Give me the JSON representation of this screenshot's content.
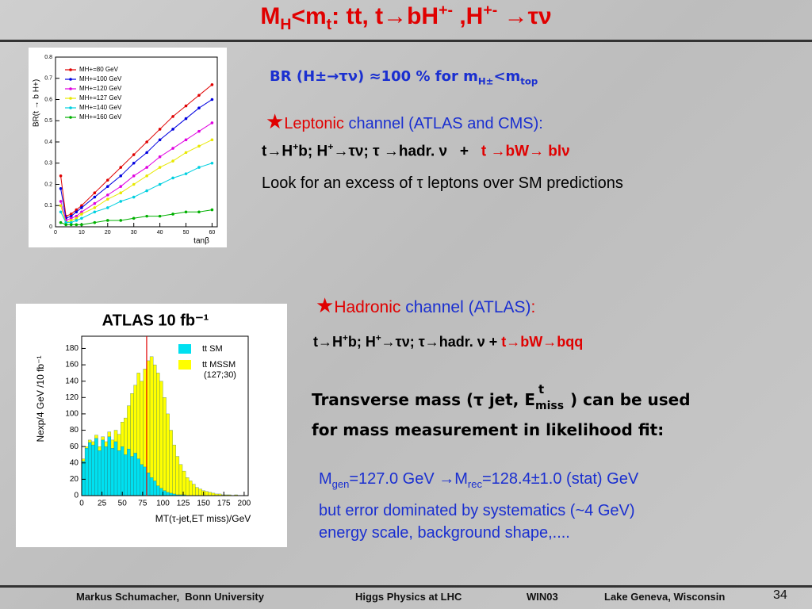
{
  "title": {
    "a": "M",
    "b": "H",
    "c": "<m",
    "d": "t",
    "e": ": tt, t→bH",
    "f": "+-",
    "g": " ,H",
    "h": "+-",
    "i": " →τν"
  },
  "br_line": {
    "a": "BR (H±→τν) ≈100 % for m",
    "b": "H±",
    "c": "<m",
    "d": "top"
  },
  "leptonic": {
    "star": "★",
    "a": "Leptonic",
    "b": " channel (ATLAS and CMS):"
  },
  "leptonic_decay": {
    "a": "t→H",
    "b": "+",
    "c": "b; H",
    "d": "+",
    "e": "→τν; τ →hadr. ν   +   ",
    "f": "t →bW→ blν"
  },
  "excess": "Look for an excess of τ leptons over SM predictions",
  "hadronic": {
    "star": "★",
    "a": "Hadronic",
    "b": " channel (ATLAS)",
    "c": ":"
  },
  "hadronic_decay": {
    "a": "t→H",
    "b": "+",
    "c": "b; H",
    "d": "+",
    "e": "→τν; τ→hadr. ν + ",
    "f": "t→bW→bqq"
  },
  "transverse": {
    "a": "Transverse mass (τ jet, E",
    "b": "t",
    "c": "miss",
    "d": ") can be used",
    "e": "for mass measurement in likelihood fit:"
  },
  "result": {
    "a": "M",
    "b": "gen",
    "c": "=127.0 GeV →M",
    "d": "rec",
    "e": "=128.4±1.0 (stat) GeV"
  },
  "systematics": [
    "but error dominated by systematics (~4 GeV)",
    "energy scale, background shape,...."
  ],
  "footer": {
    "author": "Markus Schumacher,  Bonn University",
    "event": "Higgs Physics at LHC",
    "conf": "WIN03",
    "place": "Lake Geneva, Wisconsin",
    "page": "34"
  },
  "chart_data": [
    {
      "type": "line",
      "y_label": "BR(t → b H+)",
      "x_label": "tanβ",
      "x": [
        2,
        4,
        6,
        8,
        10,
        15,
        20,
        25,
        30,
        35,
        40,
        45,
        50,
        55,
        60
      ],
      "series": [
        {
          "name": "MH+=80 GeV",
          "color": "#e00000",
          "values": [
            0.24,
            0.05,
            0.06,
            0.08,
            0.1,
            0.16,
            0.22,
            0.28,
            0.34,
            0.4,
            0.46,
            0.52,
            0.57,
            0.62,
            0.67
          ]
        },
        {
          "name": "MH+=100 GeV",
          "color": "#0000e0",
          "values": [
            0.18,
            0.04,
            0.05,
            0.07,
            0.09,
            0.14,
            0.19,
            0.24,
            0.3,
            0.35,
            0.41,
            0.46,
            0.51,
            0.56,
            0.6
          ]
        },
        {
          "name": "MH+=120 GeV",
          "color": "#e000e0",
          "values": [
            0.12,
            0.03,
            0.04,
            0.05,
            0.07,
            0.11,
            0.15,
            0.19,
            0.24,
            0.28,
            0.33,
            0.37,
            0.41,
            0.45,
            0.49
          ]
        },
        {
          "name": "MH+=127 GeV",
          "color": "#e8e800",
          "values": [
            0.1,
            0.02,
            0.03,
            0.04,
            0.06,
            0.09,
            0.13,
            0.16,
            0.2,
            0.24,
            0.28,
            0.31,
            0.35,
            0.38,
            0.41
          ]
        },
        {
          "name": "MH+=140 GeV",
          "color": "#00d0e0",
          "values": [
            0.07,
            0.02,
            0.02,
            0.03,
            0.04,
            0.07,
            0.09,
            0.12,
            0.14,
            0.17,
            0.2,
            0.23,
            0.25,
            0.28,
            0.3
          ]
        },
        {
          "name": "MH+=160 GeV",
          "color": "#00b000",
          "values": [
            0.02,
            0.01,
            0.01,
            0.01,
            0.01,
            0.02,
            0.03,
            0.03,
            0.04,
            0.05,
            0.05,
            0.06,
            0.07,
            0.07,
            0.08
          ]
        }
      ],
      "xlim": [
        0,
        62
      ],
      "xticks": [
        0,
        10,
        20,
        30,
        40,
        50,
        60
      ],
      "ylim": [
        0,
        0.8
      ],
      "yticks": [
        0,
        0.1,
        0.2,
        0.3,
        0.4,
        0.5,
        0.6,
        0.7,
        0.8
      ],
      "legend": "upper left"
    },
    {
      "type": "histogram",
      "title": "ATLAS 10 fb⁻¹",
      "y_label": "Nexp/4 GeV /10 fb⁻¹",
      "x_label": "MT(τ-jet,ET miss)/GeV",
      "bins": [
        0,
        4,
        8,
        12,
        16,
        20,
        24,
        28,
        32,
        36,
        40,
        44,
        48,
        52,
        56,
        60,
        64,
        68,
        72,
        76,
        80,
        84,
        88,
        92,
        96,
        100,
        104,
        108,
        112,
        116,
        120,
        124,
        128,
        132,
        136,
        140,
        144,
        148,
        152,
        156,
        160,
        164,
        168,
        172,
        176,
        180,
        184,
        188,
        192,
        196,
        200
      ],
      "series": [
        {
          "name": "tt MSSM",
          "color": "#ffff00",
          "values": [
            45,
            60,
            68,
            66,
            74,
            60,
            72,
            66,
            78,
            68,
            80,
            75,
            90,
            95,
            110,
            125,
            135,
            150,
            140,
            155,
            165,
            170,
            160,
            150,
            140,
            120,
            100,
            80,
            62,
            48,
            38,
            30,
            22,
            18,
            14,
            10,
            8,
            6,
            5,
            4,
            3,
            2,
            2,
            1,
            1,
            1,
            0,
            1,
            0,
            0
          ]
        },
        {
          "name": "tt SM",
          "color": "#00e0f0",
          "values": [
            42,
            58,
            65,
            62,
            70,
            55,
            68,
            60,
            72,
            58,
            66,
            55,
            60,
            50,
            57,
            48,
            52,
            45,
            38,
            35,
            28,
            22,
            18,
            12,
            9,
            6,
            4,
            3,
            2,
            1,
            1,
            1,
            0,
            0,
            0,
            0,
            0,
            0,
            0,
            0,
            0,
            0,
            0,
            0,
            0,
            0,
            0,
            0,
            0,
            0
          ]
        }
      ],
      "annotation": "(127;30)",
      "vline": 80,
      "vline_color": "#e00000",
      "xlim": [
        0,
        205
      ],
      "xticks": [
        0,
        25,
        50,
        75,
        100,
        125,
        150,
        175,
        200
      ],
      "ylim": [
        0,
        195
      ],
      "yticks": [
        0,
        20,
        40,
        60,
        80,
        100,
        120,
        140,
        160,
        180
      ]
    }
  ]
}
